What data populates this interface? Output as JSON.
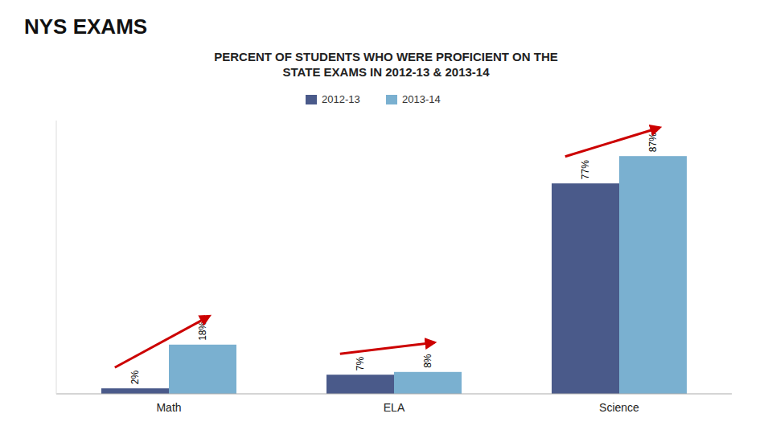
{
  "chart_data": {
    "type": "bar",
    "title": "NYS EXAMS",
    "subtitle": "PERCENT OF STUDENTS WHO WERE PROFICIENT ON THE\nSTATE EXAMS IN 2012-13 & 2013-14",
    "categories": [
      "Math",
      "ELA",
      "Science"
    ],
    "series": [
      {
        "name": "2012-13",
        "color": "#4a5a8a",
        "values": [
          2,
          7,
          77
        ],
        "value_labels": [
          "2%",
          "7%",
          "77%"
        ]
      },
      {
        "name": "2013-14",
        "color": "#7ab0d0",
        "values": [
          18,
          8,
          87
        ],
        "value_labels": [
          "18%",
          "8%",
          "87%"
        ]
      }
    ],
    "ylim": [
      0,
      100
    ],
    "grid": false,
    "legend": "top",
    "data_labels": true,
    "tick_labels": "x"
  }
}
